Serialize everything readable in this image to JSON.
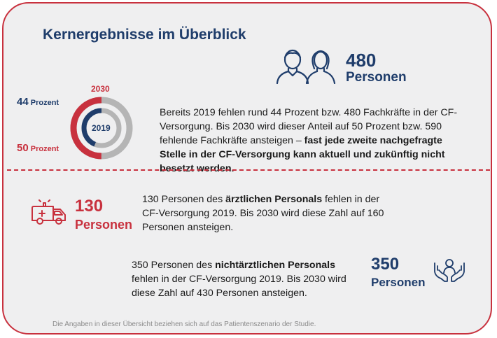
{
  "title": "Kernergebnisse im Überblick",
  "colors": {
    "navy": "#1f3d6b",
    "red": "#c8313e",
    "gray": "#b5b5b5",
    "background": "#efeff0"
  },
  "top_stat": {
    "number": "480",
    "unit": "Personen",
    "icon": "people-icon"
  },
  "ring_chart": {
    "year_outer": "2030",
    "year_inner": "2019",
    "label_2019": "44 Prozent",
    "label_2030": "50 Prozent",
    "value_2019_percent": 44,
    "value_2030_percent": 50
  },
  "summary": {
    "text_plain": "Bereits 2019 fehlen rund 44 Prozent bzw. 480 Fachkräfte in der CF-Versorgung. Bis 2030 wird dieser Anteil auf 50 Prozent bzw. 590 fehlende Fachkräfte ansteigen – ",
    "text_bold": "fast jede zweite nachgefragte Stelle in der CF-Versorgung kann aktuell und zukünftig nicht besetzt werden."
  },
  "medical": {
    "number": "130",
    "unit": "Personen",
    "icon": "ambulance-icon",
    "text_before": "130 Personen des ",
    "text_bold": "ärztlichen Personals",
    "text_after": " fehlen in der CF-Versorgung 2019. Bis 2030 wird diese Zahl auf 160 Personen ansteigen."
  },
  "nonmedical": {
    "number": "350",
    "unit": "Personen",
    "icon": "care-hands-icon",
    "text_before": "350 Personen des ",
    "text_bold": "nichtärztlichen Personals",
    "text_after": " fehlen in der CF-Versorgung 2019. Bis 2030 wird diese Zahl auf 430 Personen ansteigen."
  },
  "footnote": "Die Angaben in dieser Übersicht beziehen sich auf das Patientenszenario der Studie."
}
